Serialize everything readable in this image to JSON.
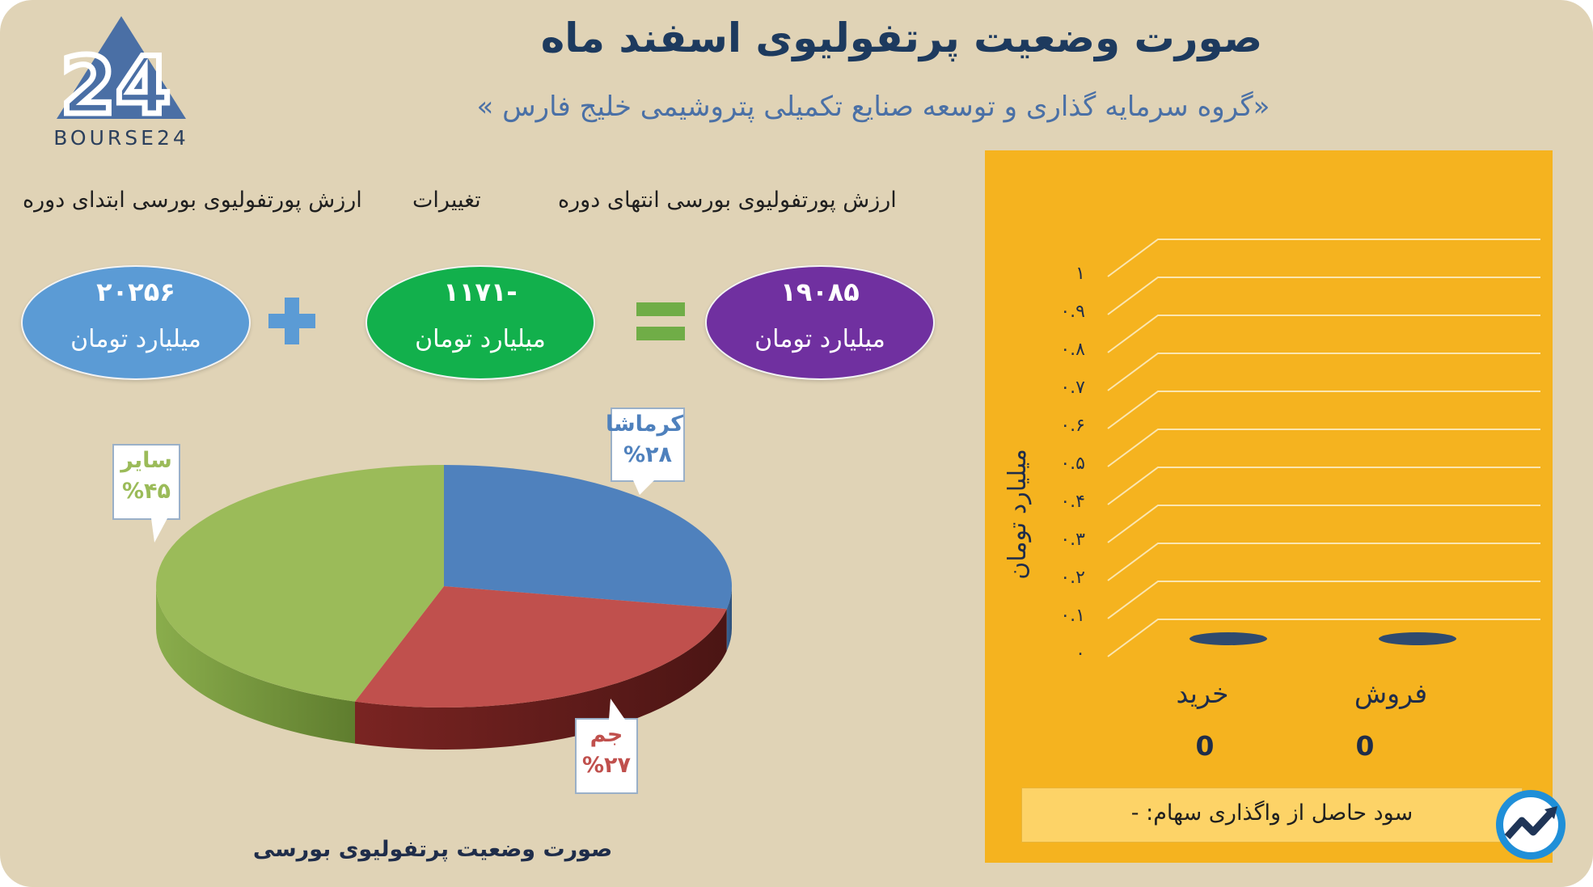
{
  "header": {
    "title": "صورت وضعیت پرتفولیوی اسفند ماه",
    "subtitle": "«گروه سرمایه گذاری و توسعه صنایع تکمیلی پتروشیمی خلیج فارس »"
  },
  "logo": {
    "text": "BOURSE24",
    "mark": "24"
  },
  "equation": {
    "end_label": "ارزش پورتفولیوی بورسی انتهای دوره",
    "change_label": "تغییرات",
    "start_label": "ارزش پورتفولیوی بورسی ابتدای دوره",
    "end_value": "۱۹۰۸۵",
    "change_value": "-۱۱۷۱",
    "start_value": "۲۰۲۵۶",
    "unit": "میلیارد تومان",
    "colors": {
      "end": "#7030a0",
      "change": "#12b04c",
      "start": "#5b9bd5",
      "plus": "#5b9bd5",
      "equals": "#70ad47"
    }
  },
  "chart_data": [
    {
      "type": "pie",
      "title": "",
      "caption": "صورت وضعیت پرتفولیوی بورسی",
      "slices": [
        {
          "label": "کرماشا",
          "value": 28,
          "value_label": "%۲۸",
          "color": "#4f81bd"
        },
        {
          "label": "جم",
          "value": 27,
          "value_label": "%۲۷",
          "color": "#c0504d"
        },
        {
          "label": "سایر",
          "value": 45,
          "value_label": "%۴۵",
          "color": "#9bbb59"
        }
      ]
    },
    {
      "type": "bar",
      "title": "",
      "categories": [
        "خرید",
        "فروش"
      ],
      "values": [
        0,
        0
      ],
      "value_labels": [
        "0",
        "0"
      ],
      "ylabel": "میلیارد تومان",
      "ylim": [
        0,
        1
      ],
      "yticks": [
        "۰",
        "۰.۱",
        "۰.۲",
        "۰.۳",
        "۰.۴",
        "۰.۵",
        "۰.۶",
        "۰.۷",
        "۰.۸",
        "۰.۹",
        "۱"
      ],
      "grid": true,
      "bar_color": "#2f4a6e",
      "background": "#f5b31f"
    }
  ],
  "footer": {
    "profit_text": "سود حاصل از واگذاری سهام: -"
  }
}
